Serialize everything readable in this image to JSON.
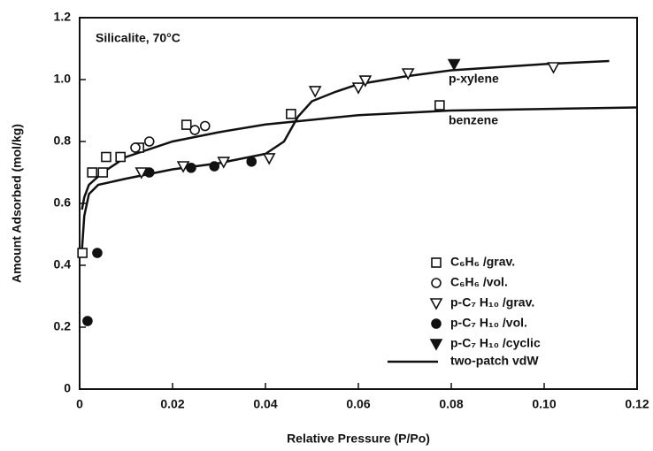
{
  "chart_data": {
    "type": "scatter",
    "annotation": "Silicalite, 70°C",
    "x_label": "Relative Pressure (P/Po)",
    "y_label": "Amount Adsorbed (mol/kg)",
    "xlim": [
      0,
      0.12
    ],
    "xticks": [
      0,
      0.02,
      0.04,
      0.06,
      0.08,
      {
        "value": 0.1,
        "label": "0.10"
      },
      0.12
    ],
    "ylim": [
      0,
      1.2
    ],
    "yticks": [
      0,
      0.2,
      0.4,
      0.6,
      0.8,
      {
        "value": 1.0,
        "label": "1.0"
      },
      1.2
    ],
    "series": [
      {
        "name": "C₆H₆ /grav.",
        "marker": "square",
        "filled": false,
        "color": "#111111",
        "x": [
          0.0006,
          0.0027,
          0.005,
          0.0057,
          0.0088,
          0.0128,
          0.023,
          0.0455,
          0.0775
        ],
        "values": [
          0.44,
          0.7,
          0.7,
          0.75,
          0.75,
          0.78,
          0.854,
          0.889,
          0.917
        ]
      },
      {
        "name": "C₆H₆ /vol.",
        "marker": "circle",
        "filled": false,
        "color": "#111111",
        "x": [
          0.012,
          0.015,
          0.0248,
          0.027
        ],
        "values": [
          0.78,
          0.8,
          0.837,
          0.85
        ]
      },
      {
        "name": "p-C₇ H₁₀ /grav.",
        "marker": "triangle",
        "filled": false,
        "color": "#111111",
        "x": [
          0.0133,
          0.0223,
          0.031,
          0.0408,
          0.0507,
          0.06,
          0.0615,
          0.0707,
          0.102
        ],
        "values": [
          0.7,
          0.72,
          0.734,
          0.746,
          0.963,
          0.974,
          0.997,
          1.02,
          1.04
        ]
      },
      {
        "name": "p-C₇ H₁₀ /vol.",
        "marker": "circle",
        "filled": true,
        "color": "#111111",
        "x": [
          0.0017,
          0.0038,
          0.015,
          0.024,
          0.029,
          0.037
        ],
        "values": [
          0.22,
          0.44,
          0.7,
          0.715,
          0.72,
          0.735
        ]
      },
      {
        "name": "p-C₇ H₁₀ /cyclic",
        "marker": "triangle",
        "filled": true,
        "color": "#111111",
        "x": [
          0.0806
        ],
        "values": [
          1.05
        ]
      }
    ],
    "line_legend": "two-patch vdW",
    "curves": [
      {
        "name": "p-xylene",
        "color": "#111111",
        "x": [
          0.0005,
          0.001,
          0.002,
          0.004,
          0.01,
          0.02,
          0.03,
          0.04,
          0.044,
          0.047,
          0.05,
          0.055,
          0.06,
          0.07,
          0.08,
          0.1,
          0.114
        ],
        "values": [
          0.45,
          0.56,
          0.63,
          0.66,
          0.68,
          0.71,
          0.73,
          0.76,
          0.8,
          0.88,
          0.93,
          0.96,
          0.985,
          1.01,
          1.03,
          1.05,
          1.06
        ]
      },
      {
        "name": "benzene",
        "color": "#111111",
        "x": [
          0.0005,
          0.001,
          0.002,
          0.005,
          0.01,
          0.02,
          0.03,
          0.04,
          0.05,
          0.06,
          0.08,
          0.1,
          0.12
        ],
        "values": [
          0.58,
          0.62,
          0.66,
          0.7,
          0.75,
          0.8,
          0.83,
          0.855,
          0.87,
          0.885,
          0.9,
          0.905,
          0.91
        ]
      }
    ]
  }
}
